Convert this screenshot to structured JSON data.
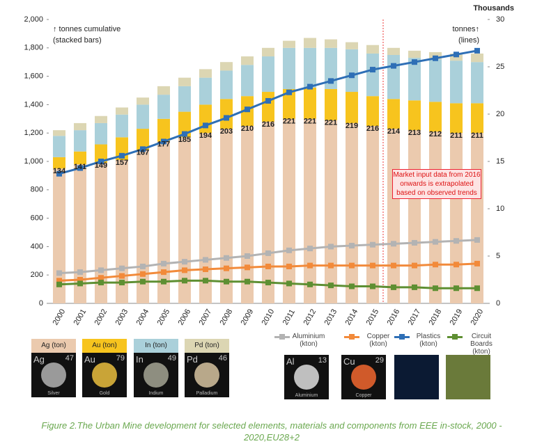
{
  "chart_data": {
    "type": "stacked-bar-line",
    "left_axis_note": [
      "↑ tonnes cumulative",
      "(stacked bars)"
    ],
    "right_axis_note": [
      "tonnes↑",
      "(lines)"
    ],
    "right_axis_unit": "Thousands",
    "annotation": "Market input data from 2016 onwards  is extrapolated based on observed trends",
    "categories": [
      "2000",
      "2001",
      "2002",
      "2003",
      "2004",
      "2005",
      "2006",
      "2007",
      "2008",
      "2009",
      "2010",
      "2011",
      "2012",
      "2013",
      "2014",
      "2015",
      "2016",
      "2017",
      "2018",
      "2019",
      "2020"
    ],
    "series": [
      {
        "name": "Ag (ton)",
        "color": "#ebcaae",
        "values": [
          950,
          980,
          990,
          1010,
          1080,
          1140,
          1170,
          1200,
          1230,
          1250,
          1280,
          1300,
          1300,
          1290,
          1270,
          1250,
          1230,
          1220,
          1210,
          1200,
          1200
        ]
      },
      {
        "name": "Au (ton)",
        "color": "#f7c41e",
        "values": [
          80,
          90,
          130,
          160,
          150,
          160,
          180,
          200,
          210,
          210,
          210,
          210,
          220,
          220,
          220,
          210,
          210,
          210,
          210,
          210,
          210
        ]
      },
      {
        "name": "In (ton)",
        "color": "#aad0da",
        "values": [
          150,
          150,
          150,
          160,
          170,
          170,
          180,
          190,
          200,
          220,
          250,
          290,
          280,
          290,
          300,
          300,
          310,
          300,
          300,
          300,
          290
        ]
      },
      {
        "name": "Pd (ton)",
        "color": "#dcd6b3",
        "values": [
          40,
          50,
          50,
          50,
          50,
          60,
          60,
          60,
          60,
          60,
          60,
          50,
          70,
          60,
          50,
          60,
          50,
          50,
          50,
          50,
          60
        ]
      },
      {
        "name": "Aluminium (kton)",
        "color": "#b3b3b3",
        "axis": "y2",
        "values": [
          3.2,
          3.3,
          3.5,
          3.7,
          3.9,
          4.2,
          4.4,
          4.6,
          4.8,
          5.0,
          5.3,
          5.6,
          5.8,
          6.0,
          6.1,
          6.2,
          6.3,
          6.4,
          6.5,
          6.6,
          6.7
        ]
      },
      {
        "name": "Copper (kton)",
        "color": "#f28a3a",
        "axis": "y2",
        "values": [
          2.4,
          2.5,
          2.7,
          2.9,
          3.1,
          3.3,
          3.5,
          3.6,
          3.7,
          3.8,
          3.9,
          3.9,
          4.0,
          4.0,
          4.0,
          4.0,
          4.0,
          4.0,
          4.1,
          4.1,
          4.2
        ]
      },
      {
        "name": "Plastics (kton)",
        "color": "#2e6fb6",
        "axis": "y2",
        "values": [
          13.7,
          14.3,
          15.0,
          15.6,
          16.3,
          17.1,
          17.9,
          18.8,
          19.6,
          20.5,
          21.4,
          22.3,
          22.9,
          23.5,
          24.1,
          24.7,
          25.1,
          25.5,
          25.9,
          26.3,
          26.7
        ]
      },
      {
        "name": "Circuit Boards (kton)",
        "color": "#5e8f32",
        "axis": "y2",
        "values": [
          2.0,
          2.1,
          2.2,
          2.2,
          2.3,
          2.3,
          2.4,
          2.4,
          2.3,
          2.3,
          2.2,
          2.1,
          2.0,
          1.9,
          1.8,
          1.8,
          1.7,
          1.7,
          1.6,
          1.6,
          1.6
        ]
      }
    ],
    "bar_labels": [
      134,
      141,
      149,
      157,
      167,
      177,
      185,
      194,
      203,
      210,
      216,
      221,
      221,
      221,
      219,
      216,
      214,
      213,
      212,
      211,
      211
    ],
    "ylim": [
      0,
      2000
    ],
    "yticks": [
      0,
      200,
      400,
      600,
      800,
      {
        "value": 1000,
        "label": "1,000"
      },
      {
        "value": 1200,
        "label": "1,200"
      },
      {
        "value": 1400,
        "label": "1,400"
      },
      {
        "value": 1600,
        "label": "1,600"
      },
      {
        "value": 1800,
        "label": "1,800"
      },
      {
        "value": 2000,
        "label": "2,000"
      }
    ],
    "y2lim": [
      0,
      30
    ],
    "y2ticks": [
      0,
      5,
      10,
      15,
      20,
      25,
      30
    ]
  },
  "element_tiles": [
    {
      "symbol": "Ag",
      "number": "47",
      "name": "Silver"
    },
    {
      "symbol": "Au",
      "number": "79",
      "name": "Gold"
    },
    {
      "symbol": "In",
      "number": "49",
      "name": "Indium"
    },
    {
      "symbol": "Pd",
      "number": "46",
      "name": "Palladium"
    },
    {
      "symbol": "Al",
      "number": "13",
      "name": "Aluminium"
    },
    {
      "symbol": "Cu",
      "number": "29",
      "name": "Copper"
    }
  ],
  "caption": "Figure 2.The Urban Mine development for selected elements, materials and components from EEE in-stock, 2000 - 2020,EU28+2"
}
